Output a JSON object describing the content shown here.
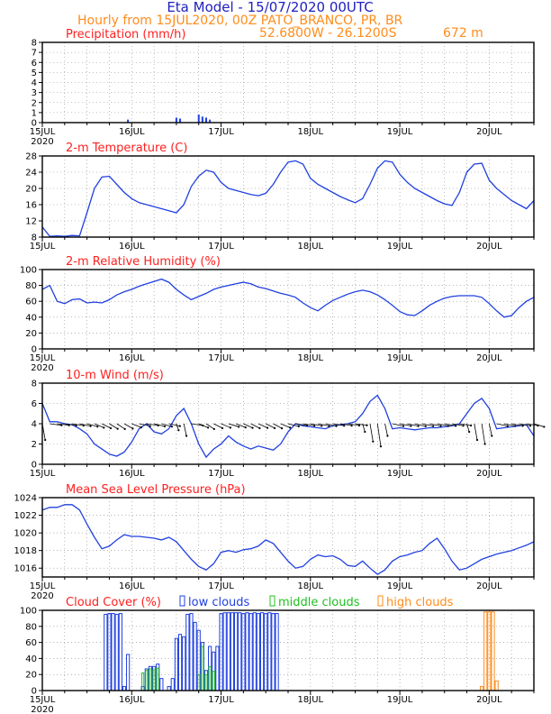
{
  "header": {
    "title": "Eta Model - 15/07/2020 00UTC",
    "subtitle": "Hourly from 15JUL2020, 00Z  PATO_BRANCO, PR, BR",
    "location": "52.6800W - 26.1200S",
    "elevation": "672  m"
  },
  "colors": {
    "title": "#2020c0",
    "subtitle": "#ff8c1a",
    "panel_title": "#ff2020",
    "series": "#2040e0",
    "low_clouds": "#2040e0",
    "middle_clouds": "#20c020",
    "high_clouds": "#ff8c1a",
    "wind_barb": "#000000"
  },
  "time_axis": {
    "start_hour": 0,
    "end_hour": 132,
    "day_hours": [
      0,
      24,
      48,
      72,
      96,
      120
    ],
    "day_labels": [
      "15JUL",
      "16JUL",
      "17JUL",
      "18JUL",
      "19JUL",
      "20JUL"
    ],
    "year_label": "2020"
  },
  "chart_data": [
    {
      "type": "bar",
      "title": "Precipitation (mm/h)",
      "ylim": [
        0,
        8
      ],
      "yticks": [
        0,
        1,
        2,
        3,
        4,
        5,
        6,
        7,
        8
      ],
      "grid": true,
      "x": [
        23,
        36,
        37,
        42,
        43,
        44,
        45
      ],
      "values": [
        0.3,
        0.5,
        0.4,
        0.8,
        0.6,
        0.5,
        0.3
      ]
    },
    {
      "type": "line",
      "title": "2-m Temperature (C)",
      "ylim": [
        8,
        28
      ],
      "yticks": [
        8,
        12,
        16,
        20,
        24,
        28
      ],
      "grid": true,
      "x": [
        0,
        2,
        4,
        6,
        8,
        10,
        12,
        14,
        16,
        18,
        20,
        22,
        24,
        26,
        28,
        30,
        32,
        34,
        36,
        38,
        40,
        42,
        44,
        46,
        48,
        50,
        52,
        54,
        56,
        58,
        60,
        62,
        64,
        66,
        68,
        70,
        72,
        74,
        76,
        78,
        80,
        82,
        84,
        86,
        88,
        90,
        92,
        94,
        96,
        98,
        100,
        102,
        104,
        106,
        108,
        110,
        112,
        114,
        116,
        118,
        120,
        122,
        124,
        126,
        128,
        130,
        132
      ],
      "values": [
        10.5,
        8.2,
        8.3,
        8.2,
        8.4,
        8.3,
        14.0,
        20.0,
        22.8,
        23.0,
        21.0,
        19.0,
        17.5,
        16.5,
        16.0,
        15.5,
        15.0,
        14.5,
        14.0,
        16.0,
        20.5,
        23.0,
        24.5,
        24.0,
        21.5,
        20.0,
        19.5,
        19.0,
        18.5,
        18.2,
        18.8,
        21.0,
        24.0,
        26.5,
        26.8,
        26.0,
        22.5,
        21.0,
        20.0,
        19.0,
        18.0,
        17.2,
        16.5,
        17.5,
        21.0,
        25.0,
        26.8,
        26.5,
        23.5,
        21.5,
        20.0,
        19.0,
        18.0,
        17.0,
        16.2,
        15.8,
        19.0,
        24.0,
        26.0,
        26.2,
        22.0,
        20.0,
        18.5,
        17.0,
        16.0,
        15.0,
        17.0
      ]
    },
    {
      "type": "line",
      "title": "2-m Relative Humidity (%)",
      "ylim": [
        0,
        100
      ],
      "yticks": [
        0,
        20,
        40,
        60,
        80,
        100
      ],
      "grid": true,
      "x": [
        0,
        2,
        4,
        6,
        8,
        10,
        12,
        14,
        16,
        18,
        20,
        22,
        24,
        26,
        28,
        30,
        32,
        34,
        36,
        38,
        40,
        42,
        44,
        46,
        48,
        50,
        52,
        54,
        56,
        58,
        60,
        62,
        64,
        66,
        68,
        70,
        72,
        74,
        76,
        78,
        80,
        82,
        84,
        86,
        88,
        90,
        92,
        94,
        96,
        98,
        100,
        102,
        104,
        106,
        108,
        110,
        112,
        114,
        116,
        118,
        120,
        122,
        124,
        126,
        128,
        130,
        132
      ],
      "values": [
        75,
        80,
        60,
        57,
        62,
        63,
        58,
        59,
        58,
        62,
        68,
        72,
        75,
        79,
        82,
        85,
        88,
        84,
        75,
        68,
        62,
        66,
        70,
        75,
        78,
        80,
        82,
        84,
        82,
        78,
        76,
        73,
        70,
        68,
        65,
        58,
        52,
        48,
        55,
        61,
        65,
        69,
        72,
        74,
        72,
        68,
        62,
        55,
        47,
        43,
        42,
        48,
        55,
        60,
        64,
        66,
        67,
        67,
        67,
        65,
        57,
        48,
        40,
        42,
        52,
        60,
        65
      ]
    },
    {
      "type": "line",
      "title": "10-m Wind (m/s)",
      "ylim": [
        0,
        8
      ],
      "yticks": [
        0,
        2,
        4,
        6,
        8
      ],
      "grid": true,
      "x": [
        0,
        2,
        4,
        6,
        8,
        10,
        12,
        14,
        16,
        18,
        20,
        22,
        24,
        26,
        28,
        30,
        32,
        34,
        36,
        38,
        40,
        42,
        44,
        46,
        48,
        50,
        52,
        54,
        56,
        58,
        60,
        62,
        64,
        66,
        68,
        70,
        72,
        74,
        76,
        78,
        80,
        82,
        84,
        86,
        88,
        90,
        92,
        94,
        96,
        98,
        100,
        102,
        104,
        106,
        108,
        110,
        112,
        114,
        116,
        118,
        120,
        122,
        124,
        126,
        128,
        130,
        132
      ],
      "values": [
        6.0,
        4.2,
        4.2,
        4.0,
        3.9,
        3.5,
        3.0,
        2.0,
        1.5,
        1.0,
        0.8,
        1.2,
        2.2,
        3.5,
        4.0,
        3.2,
        3.0,
        3.5,
        4.8,
        5.5,
        4.0,
        2.0,
        0.7,
        1.5,
        2.0,
        2.8,
        2.2,
        1.8,
        1.5,
        1.8,
        1.6,
        1.4,
        2.0,
        3.2,
        4.0,
        3.8,
        3.7,
        3.6,
        3.5,
        3.8,
        3.9,
        4.0,
        4.2,
        5.0,
        6.2,
        6.8,
        5.5,
        3.5,
        3.6,
        3.5,
        3.4,
        3.5,
        3.6,
        3.6,
        3.7,
        3.8,
        4.0,
        5.0,
        6.0,
        6.5,
        5.5,
        3.5,
        3.6,
        3.7,
        3.8,
        3.9,
        2.8
      ]
    },
    {
      "type": "line",
      "title": "Mean Sea Level Pressure (hPa)",
      "ylim": [
        1015,
        1024
      ],
      "yticks": [
        1016,
        1018,
        1020,
        1022,
        1024
      ],
      "grid": true,
      "x": [
        0,
        2,
        4,
        6,
        8,
        10,
        12,
        14,
        16,
        18,
        20,
        22,
        24,
        26,
        28,
        30,
        32,
        34,
        36,
        38,
        40,
        42,
        44,
        46,
        48,
        50,
        52,
        54,
        56,
        58,
        60,
        62,
        64,
        66,
        68,
        70,
        72,
        74,
        76,
        78,
        80,
        82,
        84,
        86,
        88,
        90,
        92,
        94,
        96,
        98,
        100,
        102,
        104,
        106,
        108,
        110,
        112,
        114,
        116,
        118,
        120,
        122,
        124,
        126,
        128,
        130,
        132
      ],
      "values": [
        1022.6,
        1022.9,
        1022.9,
        1023.2,
        1023.2,
        1022.6,
        1021.0,
        1019.5,
        1018.2,
        1018.5,
        1019.2,
        1019.8,
        1019.6,
        1019.6,
        1019.5,
        1019.4,
        1019.2,
        1019.5,
        1019.0,
        1018.0,
        1017.0,
        1016.2,
        1015.8,
        1016.5,
        1017.8,
        1018.0,
        1017.8,
        1018.1,
        1018.2,
        1018.5,
        1019.2,
        1018.8,
        1017.8,
        1016.8,
        1016.0,
        1016.2,
        1017.0,
        1017.5,
        1017.3,
        1017.4,
        1017.0,
        1016.3,
        1016.2,
        1016.8,
        1016.0,
        1015.3,
        1015.8,
        1016.8,
        1017.3,
        1017.5,
        1017.8,
        1018.0,
        1018.8,
        1019.4,
        1018.2,
        1016.8,
        1015.8,
        1016.0,
        1016.5,
        1017.0,
        1017.3,
        1017.6,
        1017.8,
        1018.0,
        1018.3,
        1018.6,
        1019.0
      ]
    },
    {
      "type": "bar",
      "title": "Cloud Cover (%)",
      "ylim": [
        0,
        100
      ],
      "yticks": [
        0,
        20,
        40,
        60,
        80,
        100
      ],
      "grid": true,
      "legend": [
        "low clouds",
        "middle clouds",
        "high clouds"
      ],
      "series": [
        {
          "name": "low clouds",
          "x": [
            17,
            18,
            19,
            20,
            21,
            22,
            23,
            27,
            28,
            29,
            30,
            31,
            32,
            34,
            35,
            36,
            37,
            38,
            39,
            40,
            41,
            42,
            43,
            44,
            45,
            46,
            47,
            48,
            49,
            50,
            51,
            52,
            53,
            54,
            55,
            56,
            57,
            58,
            59,
            60,
            61,
            62,
            63
          ],
          "values": [
            95,
            96,
            96,
            95,
            96,
            5,
            45,
            5,
            27,
            30,
            30,
            33,
            15,
            5,
            15,
            65,
            70,
            67,
            95,
            96,
            85,
            75,
            60,
            25,
            55,
            48,
            55,
            96,
            97,
            97,
            97,
            97,
            97,
            96,
            97,
            96,
            97,
            96,
            97,
            96,
            97,
            96,
            96
          ]
        },
        {
          "name": "middle clouds",
          "x": [
            27,
            28,
            29,
            30,
            31,
            42,
            43,
            44,
            45,
            46
          ],
          "values": [
            22,
            25,
            27,
            26,
            28,
            20,
            55,
            20,
            30,
            24
          ]
        },
        {
          "name": "high clouds",
          "x": [
            118,
            119,
            120,
            121,
            122
          ],
          "values": [
            5,
            98,
            98,
            98,
            12
          ]
        }
      ]
    }
  ]
}
